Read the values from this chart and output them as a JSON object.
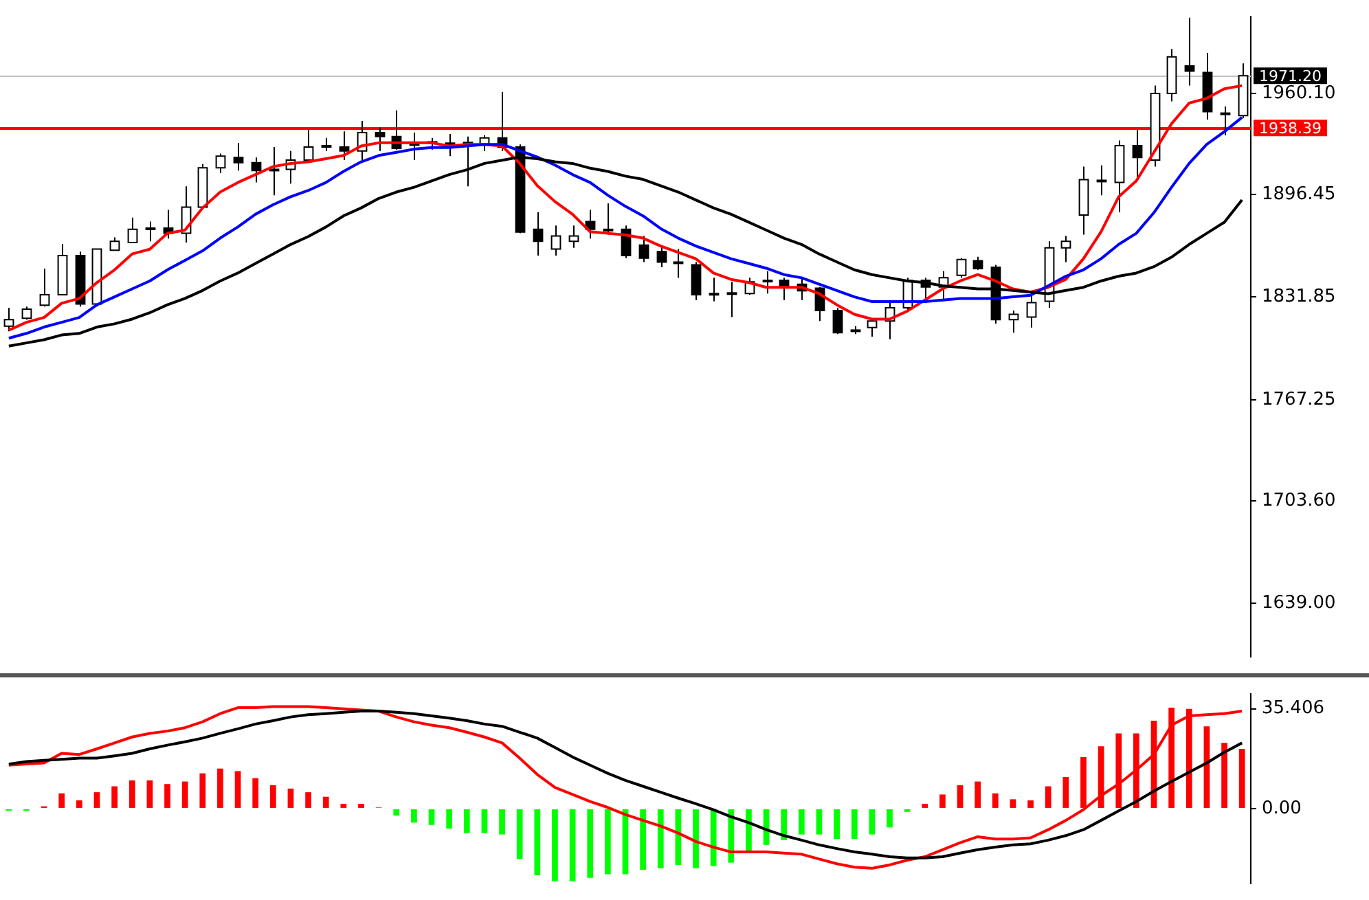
{
  "chart_data": [
    {
      "type": "candlestick",
      "categories": [
        null,
        null,
        null,
        null,
        null,
        null,
        null,
        null,
        null,
        null,
        null,
        null,
        null,
        null,
        null,
        null,
        null,
        null,
        null,
        null,
        null,
        null,
        null,
        null,
        null,
        null,
        null,
        null,
        null,
        null,
        null,
        null,
        null,
        null,
        null,
        null,
        null,
        null,
        null,
        null,
        null,
        null,
        null,
        null,
        null,
        null,
        null,
        null,
        null,
        null,
        null,
        null,
        null,
        null,
        null,
        null,
        null,
        null,
        null,
        null,
        null,
        null,
        null,
        null,
        null,
        null,
        null,
        null,
        null,
        null,
        null
      ],
      "ohlc": [
        [
          1813.5,
          1825.1,
          1810.3,
          1817.7
        ],
        [
          1818.5,
          1825.9,
          1817.7,
          1824.2
        ],
        [
          1826.7,
          1849.8,
          1825.9,
          1833.3
        ],
        [
          1833.3,
          1865.4,
          1833.3,
          1858.0
        ],
        [
          1858.0,
          1860.5,
          1825.9,
          1827.5
        ],
        [
          1827.5,
          1862.1,
          1825.9,
          1862.1
        ],
        [
          1861.3,
          1869.5,
          1861.3,
          1867.0
        ],
        [
          1866.2,
          1881.9,
          1866.2,
          1874.5
        ],
        [
          1875.3,
          1879.4,
          1867.0,
          1875.0
        ],
        [
          1875.3,
          1886.8,
          1868.7,
          1872.0
        ],
        [
          1872.0,
          1901.6,
          1866.2,
          1888.5
        ],
        [
          1888.5,
          1915.6,
          1887.6,
          1913.2
        ],
        [
          1913.2,
          1922.2,
          1909.9,
          1920.6
        ],
        [
          1919.7,
          1928.8,
          1911.5,
          1916.5
        ],
        [
          1916.5,
          1919.7,
          1904.1,
          1911.5
        ],
        [
          1912.3,
          1926.3,
          1895.9,
          1912.0
        ],
        [
          1912.3,
          1923.9,
          1903.3,
          1918.1
        ],
        [
          1918.1,
          1937.0,
          1916.5,
          1926.3
        ],
        [
          1927.2,
          1932.1,
          1923.9,
          1926.8
        ],
        [
          1926.3,
          1936.2,
          1918.1,
          1923.9
        ],
        [
          1923.9,
          1942.8,
          1916.5,
          1935.4
        ],
        [
          1935.4,
          1938.7,
          1923.9,
          1932.9
        ],
        [
          1932.9,
          1949.4,
          1924.7,
          1925.5
        ],
        [
          1928.0,
          1935.4,
          1918.1,
          1928.4
        ],
        [
          1928.8,
          1932.1,
          1924.7,
          1929.6
        ],
        [
          1928.0,
          1934.6,
          1920.6,
          1928.8
        ],
        [
          1928.8,
          1932.9,
          1901.6,
          1929.2
        ],
        [
          1928.0,
          1933.7,
          1923.9,
          1932.1
        ],
        [
          1932.1,
          1961.0,
          1923.9,
          1926.3
        ],
        [
          1926.3,
          1928.0,
          1872.0,
          1872.8
        ],
        [
          1874.5,
          1885.2,
          1858.0,
          1867.0
        ],
        [
          1862.1,
          1876.9,
          1858.0,
          1870.3
        ],
        [
          1867.0,
          1876.9,
          1862.9,
          1870.3
        ],
        [
          1879.4,
          1886.8,
          1868.7,
          1874.5
        ],
        [
          1874.5,
          1890.9,
          1871.2,
          1874.1
        ],
        [
          1874.5,
          1876.9,
          1856.4,
          1858.0
        ],
        [
          1864.6,
          1870.3,
          1853.9,
          1856.4
        ],
        [
          1860.5,
          1864.6,
          1850.6,
          1853.9
        ],
        [
          1853.9,
          1862.1,
          1844.0,
          1853.5
        ],
        [
          1852.2,
          1853.9,
          1830.0,
          1833.3
        ],
        [
          1834.1,
          1844.0,
          1829.2,
          1833.7
        ],
        [
          1834.1,
          1841.5,
          1819.3,
          1834.5
        ],
        [
          1834.1,
          1844.0,
          1833.3,
          1841.5
        ],
        [
          1842.4,
          1848.1,
          1834.1,
          1842.0
        ],
        [
          1842.4,
          1844.0,
          1830.0,
          1838.2
        ],
        [
          1839.9,
          1844.0,
          1830.0,
          1835.8
        ],
        [
          1837.4,
          1838.2,
          1816.8,
          1823.4
        ],
        [
          1823.4,
          1825.1,
          1808.6,
          1809.4
        ],
        [
          1811.1,
          1813.5,
          1808.6,
          1810.7
        ],
        [
          1812.7,
          1817.7,
          1806.9,
          1816.8
        ],
        [
          1816.8,
          1829.2,
          1805.3,
          1825.1
        ],
        [
          1825.1,
          1844.0,
          1823.4,
          1842.4
        ],
        [
          1842.4,
          1844.0,
          1829.2,
          1838.2
        ],
        [
          1838.2,
          1848.1,
          1829.2,
          1844.0
        ],
        [
          1845.6,
          1856.4,
          1844.0,
          1855.5
        ],
        [
          1854.7,
          1857.2,
          1849.0,
          1849.8
        ],
        [
          1850.6,
          1852.2,
          1815.2,
          1817.7
        ],
        [
          1817.7,
          1823.4,
          1809.4,
          1821.0
        ],
        [
          1819.3,
          1833.3,
          1812.7,
          1828.4
        ],
        [
          1829.2,
          1867.0,
          1825.1,
          1862.9
        ],
        [
          1862.9,
          1870.3,
          1853.9,
          1867.0
        ],
        [
          1883.5,
          1914.0,
          1871.2,
          1905.8
        ],
        [
          1904.9,
          1914.8,
          1895.9,
          1905.4
        ],
        [
          1904.1,
          1930.5,
          1885.2,
          1927.2
        ],
        [
          1927.2,
          1937.0,
          1905.8,
          1919.7
        ],
        [
          1918.1,
          1965.0,
          1914.0,
          1960.1
        ],
        [
          1960.1,
          1988.1,
          1955.1,
          1983.1
        ],
        [
          1977.4,
          2007.8,
          1965.0,
          1974.1
        ],
        [
          1973.3,
          1985.6,
          1943.6,
          1948.6
        ],
        [
          1947.7,
          1951.9,
          1933.7,
          1947.3
        ],
        [
          1946.1,
          1979.0,
          1944.5,
          1971.2
        ]
      ],
      "series": [
        {
          "type": "line",
          "color": "#000000",
          "values": [
            1801,
            1803,
            1805,
            1808,
            1809,
            1813,
            1815,
            1818,
            1822,
            1827,
            1831,
            1836,
            1842,
            1847,
            1853,
            1859,
            1865,
            1870,
            1876,
            1883,
            1888,
            1894,
            1898,
            1901,
            1905,
            1909,
            1912,
            1916,
            1918,
            1920,
            1919,
            1917,
            1916,
            1913,
            1911,
            1908,
            1906,
            1902,
            1898,
            1893,
            1888,
            1884,
            1879,
            1874,
            1869,
            1865,
            1859,
            1854,
            1849,
            1846,
            1844,
            1842,
            1841,
            1839,
            1838,
            1837,
            1837,
            1836,
            1835,
            1834,
            1836,
            1838,
            1842,
            1845,
            1847,
            1851,
            1857,
            1865,
            1872,
            1879,
            1893
          ]
        },
        {
          "type": "line",
          "color": "#0000ff",
          "values": [
            1806,
            1809,
            1813,
            1816,
            1819,
            1827,
            1832,
            1837,
            1842,
            1849,
            1855,
            1861,
            1869,
            1876,
            1884,
            1890,
            1895,
            1899,
            1904,
            1911,
            1917,
            1921,
            1923,
            1925,
            1926,
            1926,
            1927,
            1928,
            1928,
            1924,
            1920,
            1915,
            1909,
            1904,
            1896,
            1889,
            1883,
            1875,
            1869,
            1864,
            1860,
            1856,
            1853,
            1850,
            1846,
            1844,
            1840,
            1836,
            1832,
            1829,
            1829,
            1829,
            1829,
            1830,
            1831,
            1831,
            1831,
            1832,
            1833,
            1839,
            1845,
            1849,
            1856,
            1865,
            1872,
            1885,
            1901,
            1916,
            1928,
            1936,
            1945
          ]
        },
        {
          "type": "line",
          "color": "#ff0000",
          "values": [
            1811,
            1816,
            1819,
            1828,
            1831,
            1841,
            1849,
            1859,
            1862,
            1872,
            1874,
            1888,
            1898,
            1904,
            1909,
            1914,
            1916,
            1917,
            1919,
            1921,
            1927,
            1929,
            1929,
            1929,
            1929,
            1927,
            1928,
            1928,
            1927,
            1916,
            1902,
            1892,
            1884,
            1873,
            1872,
            1871,
            1869,
            1864,
            1860,
            1856,
            1847,
            1843,
            1841,
            1838,
            1838,
            1838,
            1834,
            1827,
            1821,
            1818,
            1818,
            1823,
            1830,
            1837,
            1842,
            1846,
            1842,
            1837,
            1835,
            1838,
            1843,
            1856,
            1873,
            1895,
            1905,
            1923,
            1941,
            1954,
            1957,
            1963,
            1965
          ]
        }
      ],
      "ylim": [
        1605.2,
        2008.7
      ],
      "yticks": [
        {
          "value": 1639,
          "label": "1639.00"
        },
        {
          "value": 1703.6,
          "label": "1703.60"
        },
        {
          "value": 1767.25,
          "label": "1767.25"
        },
        {
          "value": 1831.85,
          "label": "1831.85"
        },
        {
          "value": 1896.45,
          "label": "1896.45"
        },
        {
          "value": 1960.1,
          "label": "1960.10"
        }
      ],
      "ref_lines": [
        {
          "axis": "y",
          "value": 1971.2,
          "label": "1971.20",
          "color": "#c0c0c0"
        },
        {
          "axis": "y",
          "value": 1938.39,
          "label": "1938.39",
          "color": "#ff0000"
        }
      ],
      "tick_labels": "y"
    },
    {
      "type": "bar",
      "categories": [
        null,
        null,
        null,
        null,
        null,
        null,
        null,
        null,
        null,
        null,
        null,
        null,
        null,
        null,
        null,
        null,
        null,
        null,
        null,
        null,
        null,
        null,
        null,
        null,
        null,
        null,
        null,
        null,
        null,
        null,
        null,
        null,
        null,
        null,
        null,
        null,
        null,
        null,
        null,
        null,
        null,
        null,
        null,
        null,
        null,
        null,
        null,
        null,
        null,
        null,
        null,
        null,
        null,
        null,
        null,
        null,
        null,
        null,
        null,
        null,
        null,
        null,
        null,
        null,
        null,
        null,
        null,
        null,
        null,
        null,
        null
      ],
      "series": [
        {
          "type": "bar",
          "colors": [
            "#00ff00",
            "#00ff00",
            "#ff0000",
            "#ff0000",
            "#ff0000",
            "#ff0000",
            "#ff0000",
            "#ff0000",
            "#ff0000",
            "#ff0000",
            "#ff0000",
            "#ff0000",
            "#ff0000",
            "#ff0000",
            "#ff0000",
            "#ff0000",
            "#ff0000",
            "#ff0000",
            "#ff0000",
            "#ff0000",
            "#ff0000",
            "#ff0000",
            "#00ff00",
            "#00ff00",
            "#00ff00",
            "#00ff00",
            "#00ff00",
            "#00ff00",
            "#00ff00",
            "#00ff00",
            "#00ff00",
            "#00ff00",
            "#00ff00",
            "#00ff00",
            "#00ff00",
            "#00ff00",
            "#00ff00",
            "#00ff00",
            "#00ff00",
            "#00ff00",
            "#00ff00",
            "#00ff00",
            "#00ff00",
            "#00ff00",
            "#00ff00",
            "#00ff00",
            "#00ff00",
            "#00ff00",
            "#00ff00",
            "#00ff00",
            "#00ff00",
            "#00ff00",
            "#ff0000",
            "#ff0000",
            "#ff0000",
            "#ff0000",
            "#ff0000",
            "#ff0000",
            "#ff0000",
            "#ff0000",
            "#ff0000",
            "#ff0000",
            "#ff0000",
            "#ff0000",
            "#ff0000",
            "#ff0000",
            "#ff0000",
            "#ff0000",
            "#ff0000",
            "#ff0000",
            "#ff0000"
          ],
          "values": [
            -0.8,
            -0.8,
            0.8,
            5.4,
            2.9,
            5.8,
            7.9,
            10.0,
            10.0,
            8.7,
            9.6,
            12.5,
            14.2,
            13.3,
            10.8,
            8.3,
            7.1,
            5.8,
            4.2,
            1.7,
            1.7,
            0.4,
            -2.5,
            -5.0,
            -5.8,
            -7.1,
            -8.7,
            -8.7,
            -9.2,
            -17.9,
            -23.7,
            -25.8,
            -25.8,
            -24.6,
            -23.3,
            -23.3,
            -21.7,
            -21.2,
            -20.0,
            -21.2,
            -20.4,
            -19.2,
            -15.4,
            -12.9,
            -11.2,
            -9.2,
            -9.2,
            -10.8,
            -10.8,
            -9.2,
            -6.7,
            -1.2,
            1.7,
            5.0,
            8.3,
            9.6,
            5.4,
            3.3,
            2.9,
            7.9,
            11.2,
            18.3,
            22.1,
            26.7,
            26.7,
            31.2,
            35.8,
            35.4,
            29.2,
            23.3,
            21.2
          ]
        },
        {
          "type": "line",
          "color": "#000000",
          "values": [
            15.8,
            16.7,
            17.1,
            17.5,
            17.9,
            17.9,
            18.7,
            19.6,
            21.2,
            22.5,
            23.7,
            25.0,
            26.7,
            28.3,
            30.0,
            31.2,
            32.5,
            33.3,
            33.7,
            34.2,
            34.6,
            34.6,
            34.2,
            33.7,
            32.9,
            32.1,
            31.2,
            30.0,
            29.2,
            27.1,
            25.0,
            21.7,
            18.3,
            15.4,
            12.5,
            10.0,
            7.9,
            5.8,
            3.7,
            1.7,
            -0.4,
            -2.9,
            -5.0,
            -7.5,
            -9.6,
            -11.2,
            -12.9,
            -14.2,
            -15.4,
            -16.2,
            -17.1,
            -17.5,
            -17.5,
            -17.1,
            -15.8,
            -14.6,
            -13.7,
            -12.9,
            -12.5,
            -11.2,
            -9.6,
            -7.5,
            -4.2,
            -0.8,
            2.5,
            6.2,
            9.6,
            12.9,
            16.2,
            20.0,
            23.3
          ]
        },
        {
          "type": "line",
          "color": "#ff0000",
          "values": [
            15.4,
            15.8,
            16.2,
            19.6,
            19.2,
            21.2,
            23.3,
            25.4,
            26.7,
            27.5,
            28.7,
            30.8,
            33.7,
            35.8,
            35.8,
            36.2,
            36.2,
            36.2,
            35.8,
            35.4,
            35.0,
            34.6,
            32.5,
            30.8,
            29.6,
            28.7,
            27.1,
            25.4,
            23.3,
            17.9,
            12.1,
            7.5,
            5.0,
            2.5,
            0.4,
            -2.1,
            -4.2,
            -6.2,
            -8.7,
            -11.7,
            -13.7,
            -15.4,
            -15.4,
            -15.4,
            -15.8,
            -16.2,
            -17.9,
            -19.6,
            -20.8,
            -21.2,
            -20.0,
            -18.3,
            -17.1,
            -14.6,
            -12.1,
            -10.0,
            -10.8,
            -10.8,
            -10.4,
            -7.5,
            -4.2,
            -0.4,
            4.6,
            8.7,
            13.7,
            19.2,
            29.6,
            32.9,
            33.3,
            33.7,
            34.6
          ]
        }
      ],
      "ylim": [
        -26.7,
        40.8
      ],
      "yticks": [
        {
          "value": 0,
          "label": "0.00"
        },
        35.406
      ],
      "tick_labels": "y"
    }
  ]
}
